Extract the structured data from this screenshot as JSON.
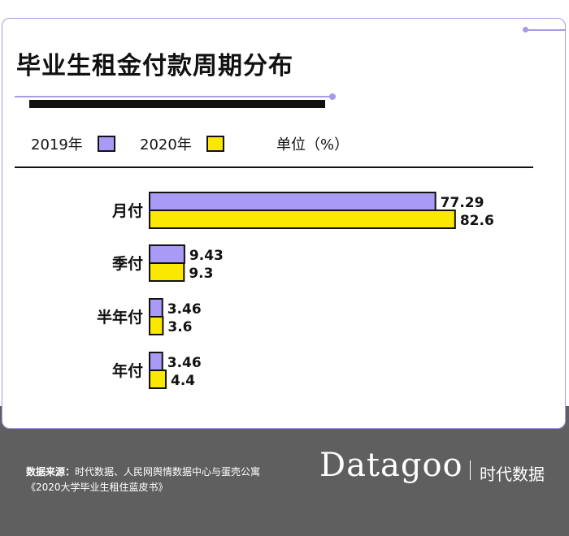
{
  "title": "毕业生租金付款周期分布",
  "legend": {
    "series1": "2019年",
    "series2": "2020年",
    "unit": "单位（%）"
  },
  "colors": {
    "series1": "#a99af5",
    "series2": "#fbe800",
    "accent": "#a89ae8",
    "outline": "#111111"
  },
  "chart_data": {
    "type": "bar",
    "orientation": "horizontal",
    "categories": [
      "月付",
      "季付",
      "半年付",
      "年付"
    ],
    "series": [
      {
        "name": "2019年",
        "values": [
          77.29,
          9.43,
          3.46,
          3.46
        ]
      },
      {
        "name": "2020年",
        "values": [
          82.6,
          9.3,
          3.6,
          4.4
        ]
      }
    ],
    "unit": "%",
    "xlim": [
      0,
      100
    ],
    "grid": false,
    "legend_position": "top-left"
  },
  "footer": {
    "source_label": "数据来源：",
    "source_text": "时代数据、人民网舆情数据中心与蛋壳公寓《2020大学毕业生租住蓝皮书》",
    "brand": "Datagoo",
    "brand_cn": "时代数据"
  }
}
